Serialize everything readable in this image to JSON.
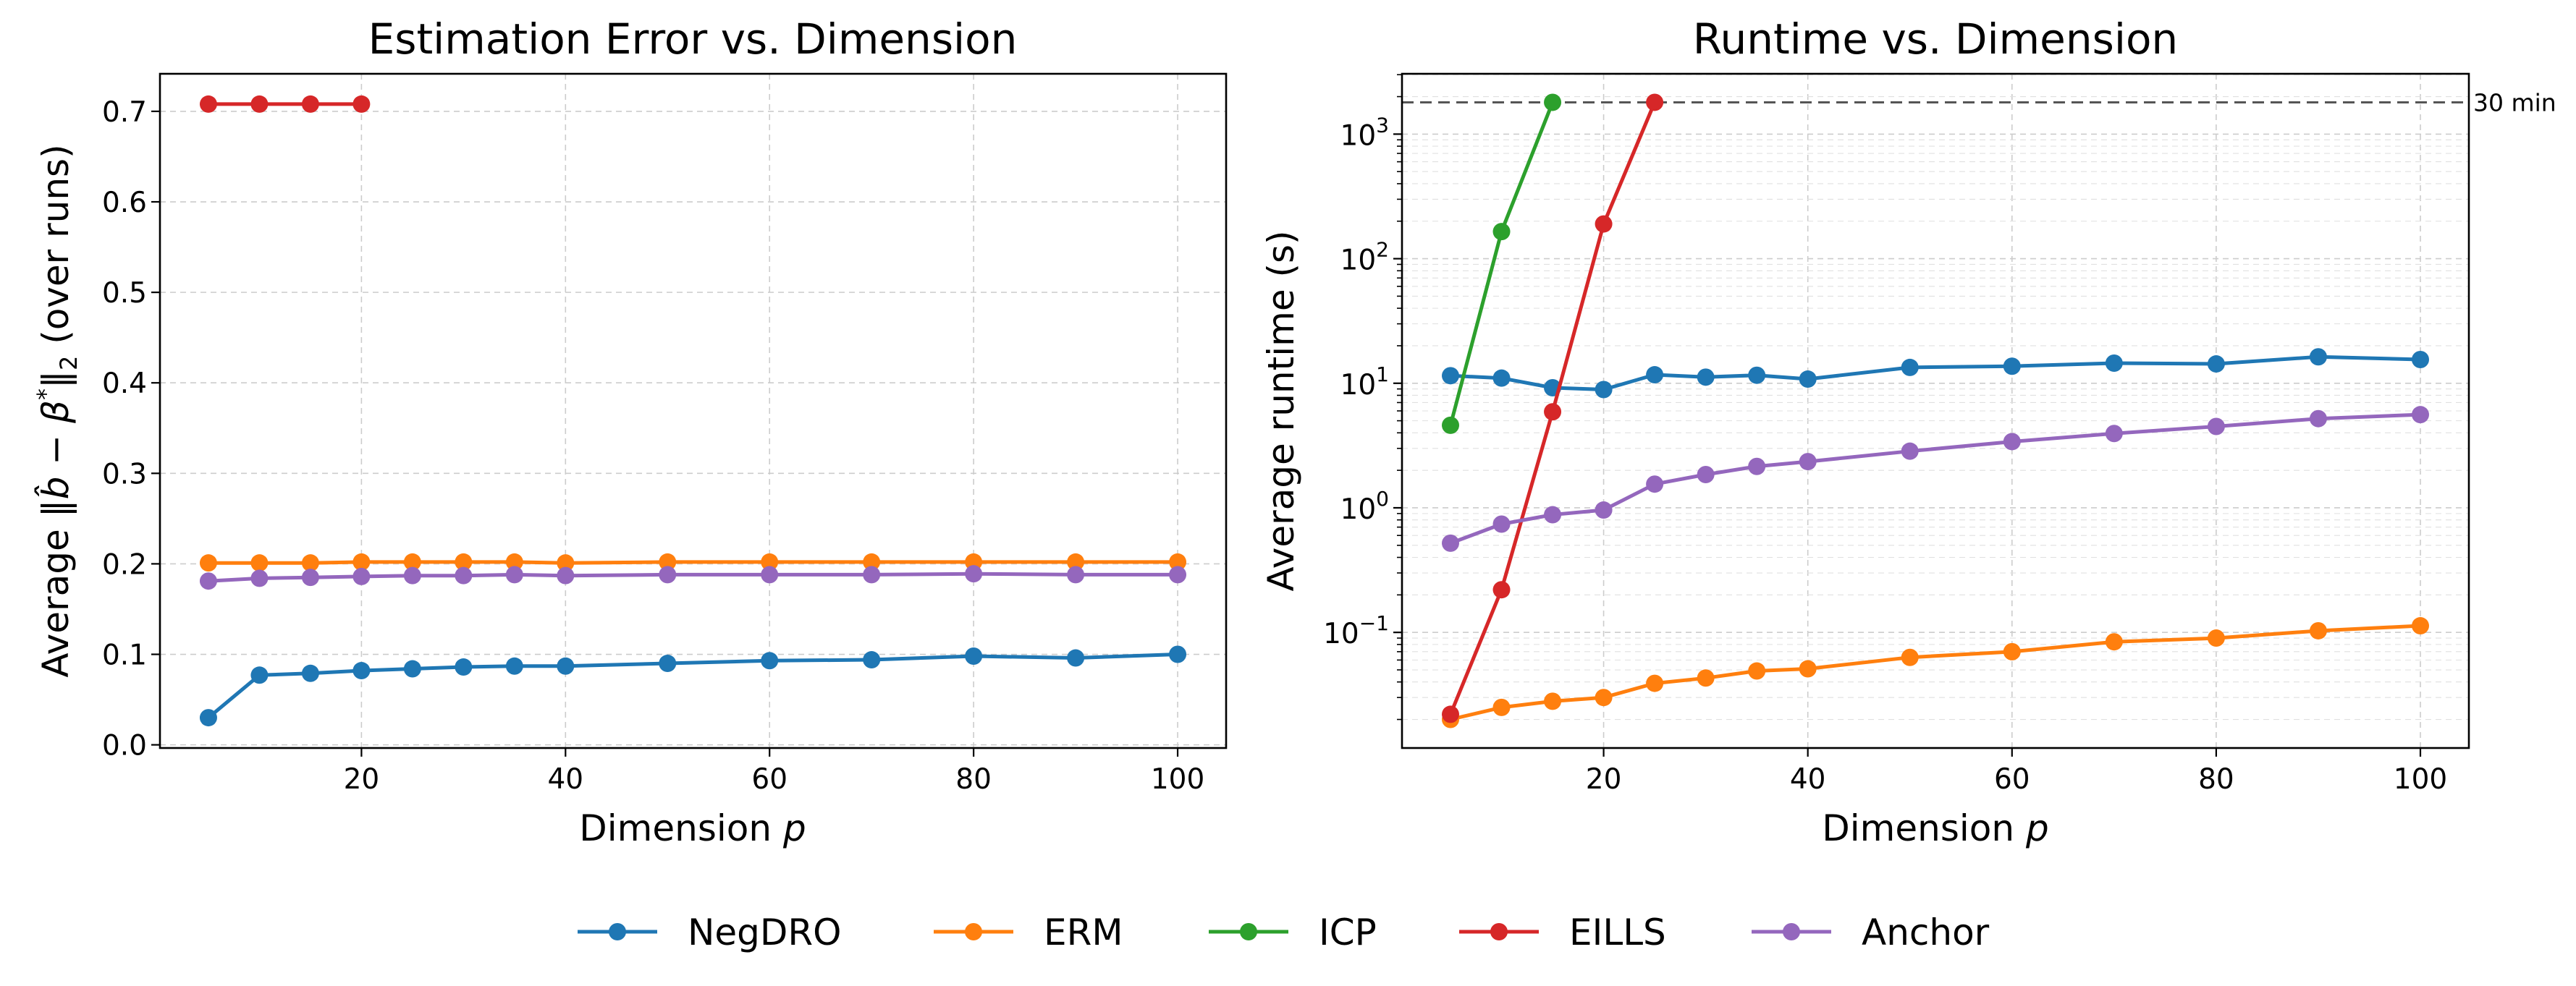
{
  "legend": [
    {
      "name": "NegDRO",
      "color": "#1f77b4"
    },
    {
      "name": "ERM",
      "color": "#ff7f0e"
    },
    {
      "name": "ICP",
      "color": "#2ca02c"
    },
    {
      "name": "EILLS",
      "color": "#d62728"
    },
    {
      "name": "Anchor",
      "color": "#9467bd"
    }
  ],
  "chart_data": [
    {
      "type": "line",
      "title": "Estimation Error vs. Dimension",
      "xlabel": "Dimension p",
      "ylabel": "Average ‖b̂ − β*‖₂ (over runs)",
      "xlim": [
        0.25,
        104.75
      ],
      "ylim": [
        -0.0035,
        0.7415
      ],
      "yscale": "linear",
      "xticks": [
        20,
        40,
        60,
        80,
        100
      ],
      "xtick_labels": [
        "20",
        "40",
        "60",
        "80",
        "100"
      ],
      "yticks": [
        0.0,
        0.1,
        0.2,
        0.3,
        0.4,
        0.5,
        0.6,
        0.7
      ],
      "ytick_labels": [
        "0.0",
        "0.1",
        "0.2",
        "0.3",
        "0.4",
        "0.5",
        "0.6",
        "0.7"
      ],
      "grid": true,
      "series": [
        {
          "name": "NegDRO",
          "color": "#1f77b4",
          "x": [
            5,
            10,
            15,
            20,
            25,
            30,
            35,
            40,
            50,
            60,
            70,
            80,
            90,
            100
          ],
          "y": [
            0.03,
            0.077,
            0.079,
            0.082,
            0.084,
            0.086,
            0.087,
            0.087,
            0.09,
            0.093,
            0.094,
            0.098,
            0.096,
            0.1
          ]
        },
        {
          "name": "ERM",
          "color": "#ff7f0e",
          "x": [
            5,
            10,
            15,
            20,
            25,
            30,
            35,
            40,
            50,
            60,
            70,
            80,
            90,
            100
          ],
          "y": [
            0.201,
            0.201,
            0.201,
            0.202,
            0.202,
            0.202,
            0.202,
            0.201,
            0.202,
            0.202,
            0.202,
            0.202,
            0.202,
            0.202
          ]
        },
        {
          "name": "EILLS",
          "color": "#d62728",
          "x": [
            5,
            10,
            15,
            20
          ],
          "y": [
            0.708,
            0.708,
            0.708,
            0.708
          ]
        },
        {
          "name": "Anchor",
          "color": "#9467bd",
          "x": [
            5,
            10,
            15,
            20,
            25,
            30,
            35,
            40,
            50,
            60,
            70,
            80,
            90,
            100
          ],
          "y": [
            0.181,
            0.184,
            0.185,
            0.186,
            0.187,
            0.187,
            0.188,
            0.187,
            0.188,
            0.188,
            0.188,
            0.189,
            0.188,
            0.188
          ]
        }
      ]
    },
    {
      "type": "line",
      "title": "Runtime vs. Dimension",
      "xlabel": "Dimension p",
      "ylabel": "Average runtime (s)",
      "xlim": [
        0.25,
        104.75
      ],
      "ylim": [
        0.0118,
        3050
      ],
      "yscale": "log",
      "xticks": [
        20,
        40,
        60,
        80,
        100
      ],
      "xtick_labels": [
        "20",
        "40",
        "60",
        "80",
        "100"
      ],
      "yticks": [
        0.1,
        1,
        10,
        100,
        1000
      ],
      "ytick_base": "10",
      "ytick_exponents": [
        "−1",
        "0",
        "1",
        "2",
        "3"
      ],
      "grid": true,
      "reference_line": {
        "y": 1800,
        "label": "30 min",
        "color": "#555555"
      },
      "series": [
        {
          "name": "NegDRO",
          "color": "#1f77b4",
          "x": [
            5,
            10,
            15,
            20,
            25,
            30,
            35,
            40,
            50,
            60,
            70,
            80,
            90,
            100
          ],
          "y": [
            11.5,
            11.0,
            9.2,
            8.9,
            11.7,
            11.2,
            11.6,
            10.8,
            13.4,
            13.7,
            14.5,
            14.3,
            16.3,
            15.5
          ]
        },
        {
          "name": "ERM",
          "color": "#ff7f0e",
          "x": [
            5,
            10,
            15,
            20,
            25,
            30,
            35,
            40,
            50,
            60,
            70,
            80,
            90,
            100
          ],
          "y": [
            0.02,
            0.025,
            0.028,
            0.03,
            0.039,
            0.043,
            0.049,
            0.051,
            0.063,
            0.07,
            0.084,
            0.09,
            0.103,
            0.113
          ]
        },
        {
          "name": "ICP",
          "color": "#2ca02c",
          "x": [
            5,
            10,
            15
          ],
          "y": [
            4.6,
            165,
            1800
          ]
        },
        {
          "name": "EILLS",
          "color": "#d62728",
          "x": [
            5,
            10,
            15,
            20,
            25
          ],
          "y": [
            0.022,
            0.22,
            5.9,
            190,
            1800
          ]
        },
        {
          "name": "Anchor",
          "color": "#9467bd",
          "x": [
            5,
            10,
            15,
            20,
            25,
            30,
            35,
            40,
            50,
            60,
            70,
            80,
            90,
            100
          ],
          "y": [
            0.52,
            0.74,
            0.88,
            0.96,
            1.55,
            1.85,
            2.15,
            2.35,
            2.85,
            3.4,
            3.95,
            4.5,
            5.2,
            5.6
          ]
        }
      ]
    }
  ]
}
